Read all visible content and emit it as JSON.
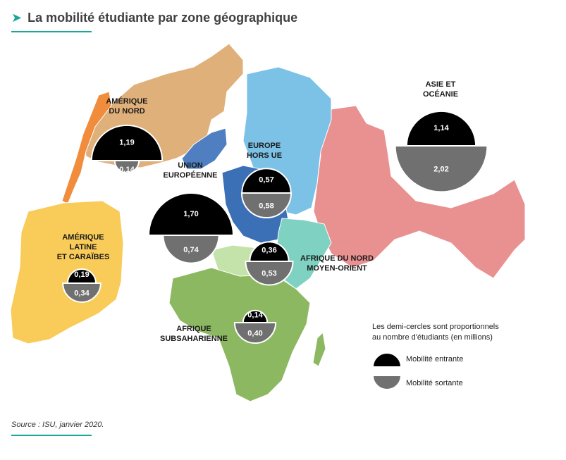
{
  "title": "La mobilité étudiante par zone géographique",
  "source": "Source : ISU, janvier 2020.",
  "legend": {
    "note_line1": "Les demi-cercles sont proportionnels",
    "note_line2": "au nombre d'étudiants (en millions)",
    "incoming_label": "Mobilité entrante",
    "outgoing_label": "Mobilité sortante",
    "incoming_color": "#000000",
    "outgoing_color": "#707070"
  },
  "unit": "millions",
  "regions": [
    {
      "id": "amerique-du-nord",
      "name_line1": "AMÉRIQUE",
      "name_line2": "DU NORD",
      "name_line3": "",
      "color": "#e0b07a",
      "incoming": "1,19",
      "outgoing": "0,14"
    },
    {
      "id": "amerique-latine",
      "name_line1": "AMÉRIQUE",
      "name_line2": "LATINE",
      "name_line3": "ET CARAÏBES",
      "color": "#f9cb58",
      "incoming": "0,19",
      "outgoing": "0,34"
    },
    {
      "id": "union-europeenne",
      "name_line1": "UNION",
      "name_line2": "EUROPÉENNE",
      "name_line3": "",
      "color": "#3b6fb6",
      "incoming": "1,70",
      "outgoing": "0,74"
    },
    {
      "id": "europe-hors-ue",
      "name_line1": "EUROPE",
      "name_line2": "HORS UE",
      "name_line3": "",
      "color": "#7cc2e6",
      "incoming": "0,57",
      "outgoing": "0,58"
    },
    {
      "id": "asie-oceanie",
      "name_line1": "ASIE ET",
      "name_line2": "OCÉANIE",
      "name_line3": "",
      "color": "#e99191",
      "incoming": "1,14",
      "outgoing": "2,02"
    },
    {
      "id": "afrique-nord",
      "name_line1": "AFRIQUE DU NORD",
      "name_line2": "MOYEN-ORIENT",
      "name_line3": "",
      "color": "#7fd1c1",
      "incoming": "0,36",
      "outgoing": "0,53"
    },
    {
      "id": "afrique-sub",
      "name_line1": "AFRIQUE",
      "name_line2": "SUBSAHARIENNE",
      "name_line3": "",
      "color": "#8db862",
      "incoming": "0,14",
      "outgoing": "0,40"
    }
  ],
  "extra_colors": {
    "greenland": "#4f7fc0",
    "central_america": "#f08c3c",
    "sahara": "#c4e3ab"
  }
}
